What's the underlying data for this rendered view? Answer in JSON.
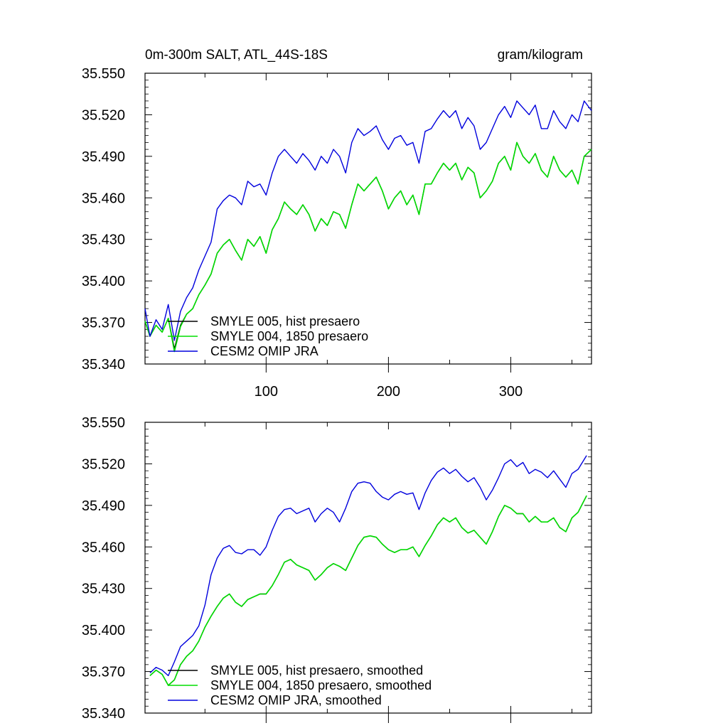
{
  "header": {
    "title": "0m-300m SALT, ATL_44S-18S",
    "units": "gram/kilogram"
  },
  "colors": {
    "smyle005": "#000000",
    "smyle004": "#00dd00",
    "omip": "#0000dd"
  },
  "chart_data": [
    {
      "type": "line",
      "panel": "top",
      "xlim": [
        1,
        366
      ],
      "ylim": [
        35.34,
        35.55
      ],
      "xticks": [
        100,
        200,
        300
      ],
      "yticks": [
        "35.550",
        "35.520",
        "35.490",
        "35.460",
        "35.430",
        "35.400",
        "35.370",
        "35.340"
      ],
      "legend_position": "lower-left",
      "series": [
        {
          "name": "SMYLE 005, hist presaero",
          "color": "#000000",
          "x": [
            1,
            5,
            10,
            15,
            20,
            25,
            30,
            35,
            40,
            45,
            50,
            55,
            60,
            65,
            70,
            75,
            80,
            85,
            90,
            95,
            100,
            105,
            110,
            115,
            120,
            125,
            130,
            135,
            140,
            145,
            150,
            155,
            160,
            165,
            170,
            175,
            180,
            185,
            190,
            195,
            200,
            205,
            210,
            215,
            220,
            225,
            230,
            235,
            240,
            245,
            250,
            255,
            260,
            265,
            270,
            275,
            280,
            285,
            290,
            295,
            300,
            305,
            310,
            315,
            320,
            325,
            330,
            335,
            340,
            345,
            350,
            355,
            360,
            366
          ],
          "y": [
            35.371,
            35.36,
            35.368,
            35.363,
            35.373,
            35.351,
            35.368,
            35.376,
            35.38,
            35.39,
            35.397,
            35.405,
            35.42,
            35.426,
            35.43,
            35.422,
            35.415,
            35.43,
            35.425,
            35.432,
            35.42,
            35.437,
            35.445,
            35.457,
            35.452,
            35.448,
            35.455,
            35.448,
            35.436,
            35.445,
            35.44,
            35.45,
            35.448,
            35.438,
            35.455,
            35.47,
            35.465,
            35.47,
            35.475,
            35.465,
            35.452,
            35.46,
            35.465,
            35.455,
            35.462,
            35.448,
            35.47,
            35.47,
            35.478,
            35.485,
            35.48,
            35.485,
            35.473,
            35.482,
            35.478,
            35.46,
            35.465,
            35.472,
            35.485,
            35.49,
            35.48,
            35.5,
            35.49,
            35.485,
            35.492,
            35.48,
            35.475,
            35.49,
            35.48,
            35.475,
            35.48,
            35.47,
            35.49,
            35.495
          ]
        },
        {
          "name": "SMYLE 004, 1850 presaero",
          "color": "#00dd00",
          "x": [
            1,
            5,
            10,
            15,
            20,
            25,
            30,
            35,
            40,
            45,
            50,
            55,
            60,
            65,
            70,
            75,
            80,
            85,
            90,
            95,
            100,
            105,
            110,
            115,
            120,
            125,
            130,
            135,
            140,
            145,
            150,
            155,
            160,
            165,
            170,
            175,
            180,
            185,
            190,
            195,
            200,
            205,
            210,
            215,
            220,
            225,
            230,
            235,
            240,
            245,
            250,
            255,
            260,
            265,
            270,
            275,
            280,
            285,
            290,
            295,
            300,
            305,
            310,
            315,
            320,
            325,
            330,
            335,
            340,
            345,
            350,
            355,
            360,
            366
          ],
          "y": [
            35.371,
            35.36,
            35.368,
            35.363,
            35.373,
            35.349,
            35.367,
            35.376,
            35.38,
            35.39,
            35.397,
            35.405,
            35.42,
            35.426,
            35.43,
            35.422,
            35.415,
            35.43,
            35.425,
            35.432,
            35.42,
            35.437,
            35.445,
            35.457,
            35.452,
            35.448,
            35.455,
            35.448,
            35.436,
            35.445,
            35.44,
            35.45,
            35.448,
            35.438,
            35.455,
            35.47,
            35.465,
            35.47,
            35.475,
            35.465,
            35.452,
            35.46,
            35.465,
            35.455,
            35.462,
            35.448,
            35.47,
            35.47,
            35.478,
            35.485,
            35.48,
            35.485,
            35.473,
            35.482,
            35.478,
            35.46,
            35.465,
            35.472,
            35.485,
            35.49,
            35.48,
            35.5,
            35.49,
            35.485,
            35.492,
            35.48,
            35.475,
            35.49,
            35.48,
            35.475,
            35.48,
            35.47,
            35.49,
            35.495
          ]
        },
        {
          "name": "CESM2 OMIP JRA",
          "color": "#0000dd",
          "x": [
            1,
            5,
            10,
            15,
            20,
            25,
            30,
            35,
            40,
            45,
            50,
            55,
            60,
            65,
            70,
            75,
            80,
            85,
            90,
            95,
            100,
            105,
            110,
            115,
            120,
            125,
            130,
            135,
            140,
            145,
            150,
            155,
            160,
            165,
            170,
            175,
            180,
            185,
            190,
            195,
            200,
            205,
            210,
            215,
            220,
            225,
            230,
            235,
            240,
            245,
            250,
            255,
            260,
            265,
            270,
            275,
            280,
            285,
            290,
            295,
            300,
            305,
            310,
            315,
            320,
            325,
            330,
            335,
            340,
            345,
            350,
            355,
            360,
            366
          ],
          "y": [
            35.38,
            35.36,
            35.372,
            35.365,
            35.383,
            35.357,
            35.378,
            35.388,
            35.395,
            35.408,
            35.418,
            35.428,
            35.452,
            35.458,
            35.462,
            35.46,
            35.455,
            35.472,
            35.468,
            35.47,
            35.462,
            35.478,
            35.49,
            35.495,
            35.49,
            35.485,
            35.492,
            35.487,
            35.48,
            35.49,
            35.485,
            35.495,
            35.49,
            35.478,
            35.5,
            35.51,
            35.505,
            35.508,
            35.512,
            35.502,
            35.495,
            35.503,
            35.505,
            35.498,
            35.5,
            35.485,
            35.508,
            35.51,
            35.517,
            35.523,
            35.518,
            35.523,
            35.51,
            35.518,
            35.512,
            35.495,
            35.5,
            35.51,
            35.52,
            35.526,
            35.518,
            35.53,
            35.525,
            35.52,
            35.527,
            35.51,
            35.51,
            35.523,
            35.515,
            35.51,
            35.52,
            35.515,
            35.53,
            35.523
          ]
        }
      ]
    },
    {
      "type": "line",
      "panel": "bottom",
      "xlim": [
        1,
        366
      ],
      "ylim": [
        35.34,
        35.55
      ],
      "yticks": [
        "35.550",
        "35.520",
        "35.490",
        "35.460",
        "35.430",
        "35.400",
        "35.370",
        "35.340"
      ],
      "legend_position": "lower-left",
      "series": [
        {
          "name": "SMYLE 005, hist presaero, smoothed",
          "color": "#000000",
          "x": [
            5,
            10,
            15,
            20,
            25,
            30,
            35,
            40,
            45,
            50,
            55,
            60,
            65,
            70,
            75,
            80,
            85,
            90,
            95,
            100,
            105,
            110,
            115,
            120,
            125,
            130,
            135,
            140,
            145,
            150,
            155,
            160,
            165,
            170,
            175,
            180,
            185,
            190,
            195,
            200,
            205,
            210,
            215,
            220,
            225,
            230,
            235,
            240,
            245,
            250,
            255,
            260,
            265,
            270,
            275,
            280,
            285,
            290,
            295,
            300,
            305,
            310,
            315,
            320,
            325,
            330,
            335,
            340,
            345,
            350,
            355,
            362
          ],
          "y": [
            35.367,
            35.371,
            35.368,
            35.36,
            35.364,
            35.375,
            35.381,
            35.385,
            35.392,
            35.402,
            35.41,
            35.417,
            35.423,
            35.426,
            35.42,
            35.417,
            35.422,
            35.424,
            35.426,
            35.426,
            35.432,
            35.44,
            35.449,
            35.451,
            35.447,
            35.445,
            35.443,
            35.436,
            35.44,
            35.445,
            35.448,
            35.446,
            35.443,
            35.452,
            35.461,
            35.467,
            35.468,
            35.467,
            35.462,
            35.458,
            35.456,
            35.458,
            35.458,
            35.46,
            35.453,
            35.461,
            35.468,
            35.476,
            35.481,
            35.478,
            35.481,
            35.474,
            35.47,
            35.472,
            35.467,
            35.462,
            35.471,
            35.482,
            35.49,
            35.488,
            35.484,
            35.484,
            35.478,
            35.482,
            35.478,
            35.478,
            35.481,
            35.474,
            35.471,
            35.481,
            35.485,
            35.497
          ]
        },
        {
          "name": "SMYLE 004, 1850 presaero, smoothed",
          "color": "#00dd00",
          "x": [
            5,
            10,
            15,
            20,
            25,
            30,
            35,
            40,
            45,
            50,
            55,
            60,
            65,
            70,
            75,
            80,
            85,
            90,
            95,
            100,
            105,
            110,
            115,
            120,
            125,
            130,
            135,
            140,
            145,
            150,
            155,
            160,
            165,
            170,
            175,
            180,
            185,
            190,
            195,
            200,
            205,
            210,
            215,
            220,
            225,
            230,
            235,
            240,
            245,
            250,
            255,
            260,
            265,
            270,
            275,
            280,
            285,
            290,
            295,
            300,
            305,
            310,
            315,
            320,
            325,
            330,
            335,
            340,
            345,
            350,
            355,
            362
          ],
          "y": [
            35.367,
            35.371,
            35.368,
            35.36,
            35.364,
            35.375,
            35.381,
            35.385,
            35.392,
            35.402,
            35.41,
            35.417,
            35.423,
            35.426,
            35.42,
            35.417,
            35.422,
            35.424,
            35.426,
            35.426,
            35.432,
            35.44,
            35.449,
            35.451,
            35.447,
            35.445,
            35.443,
            35.436,
            35.44,
            35.445,
            35.448,
            35.446,
            35.443,
            35.452,
            35.461,
            35.467,
            35.468,
            35.467,
            35.462,
            35.458,
            35.456,
            35.458,
            35.458,
            35.46,
            35.453,
            35.461,
            35.468,
            35.476,
            35.481,
            35.478,
            35.481,
            35.474,
            35.47,
            35.472,
            35.467,
            35.462,
            35.471,
            35.482,
            35.49,
            35.488,
            35.484,
            35.484,
            35.478,
            35.482,
            35.478,
            35.478,
            35.481,
            35.474,
            35.471,
            35.481,
            35.485,
            35.497
          ]
        },
        {
          "name": "CESM2 OMIP JRA, smoothed",
          "color": "#0000dd",
          "x": [
            5,
            10,
            15,
            20,
            25,
            30,
            35,
            40,
            45,
            50,
            55,
            60,
            65,
            70,
            75,
            80,
            85,
            90,
            95,
            100,
            105,
            110,
            115,
            120,
            125,
            130,
            135,
            140,
            145,
            150,
            155,
            160,
            165,
            170,
            175,
            180,
            185,
            190,
            195,
            200,
            205,
            210,
            215,
            220,
            225,
            230,
            235,
            240,
            245,
            250,
            255,
            260,
            265,
            270,
            275,
            280,
            285,
            290,
            295,
            300,
            305,
            310,
            315,
            320,
            325,
            330,
            335,
            340,
            345,
            350,
            355,
            362
          ],
          "y": [
            35.369,
            35.373,
            35.371,
            35.367,
            35.377,
            35.388,
            35.392,
            35.396,
            35.403,
            35.418,
            35.44,
            35.452,
            35.459,
            35.461,
            35.456,
            35.455,
            35.458,
            35.458,
            35.454,
            35.46,
            35.472,
            35.482,
            35.487,
            35.488,
            35.484,
            35.486,
            35.488,
            35.478,
            35.484,
            35.488,
            35.485,
            35.478,
            35.488,
            35.5,
            35.506,
            35.507,
            35.506,
            35.5,
            35.496,
            35.494,
            35.498,
            35.5,
            35.498,
            35.499,
            35.487,
            35.499,
            35.508,
            35.514,
            35.517,
            35.513,
            35.516,
            35.511,
            35.507,
            35.51,
            35.503,
            35.494,
            35.501,
            35.51,
            35.52,
            35.523,
            35.518,
            35.521,
            35.513,
            35.516,
            35.514,
            35.51,
            35.515,
            35.509,
            35.503,
            35.513,
            35.516,
            35.526
          ]
        }
      ]
    }
  ]
}
